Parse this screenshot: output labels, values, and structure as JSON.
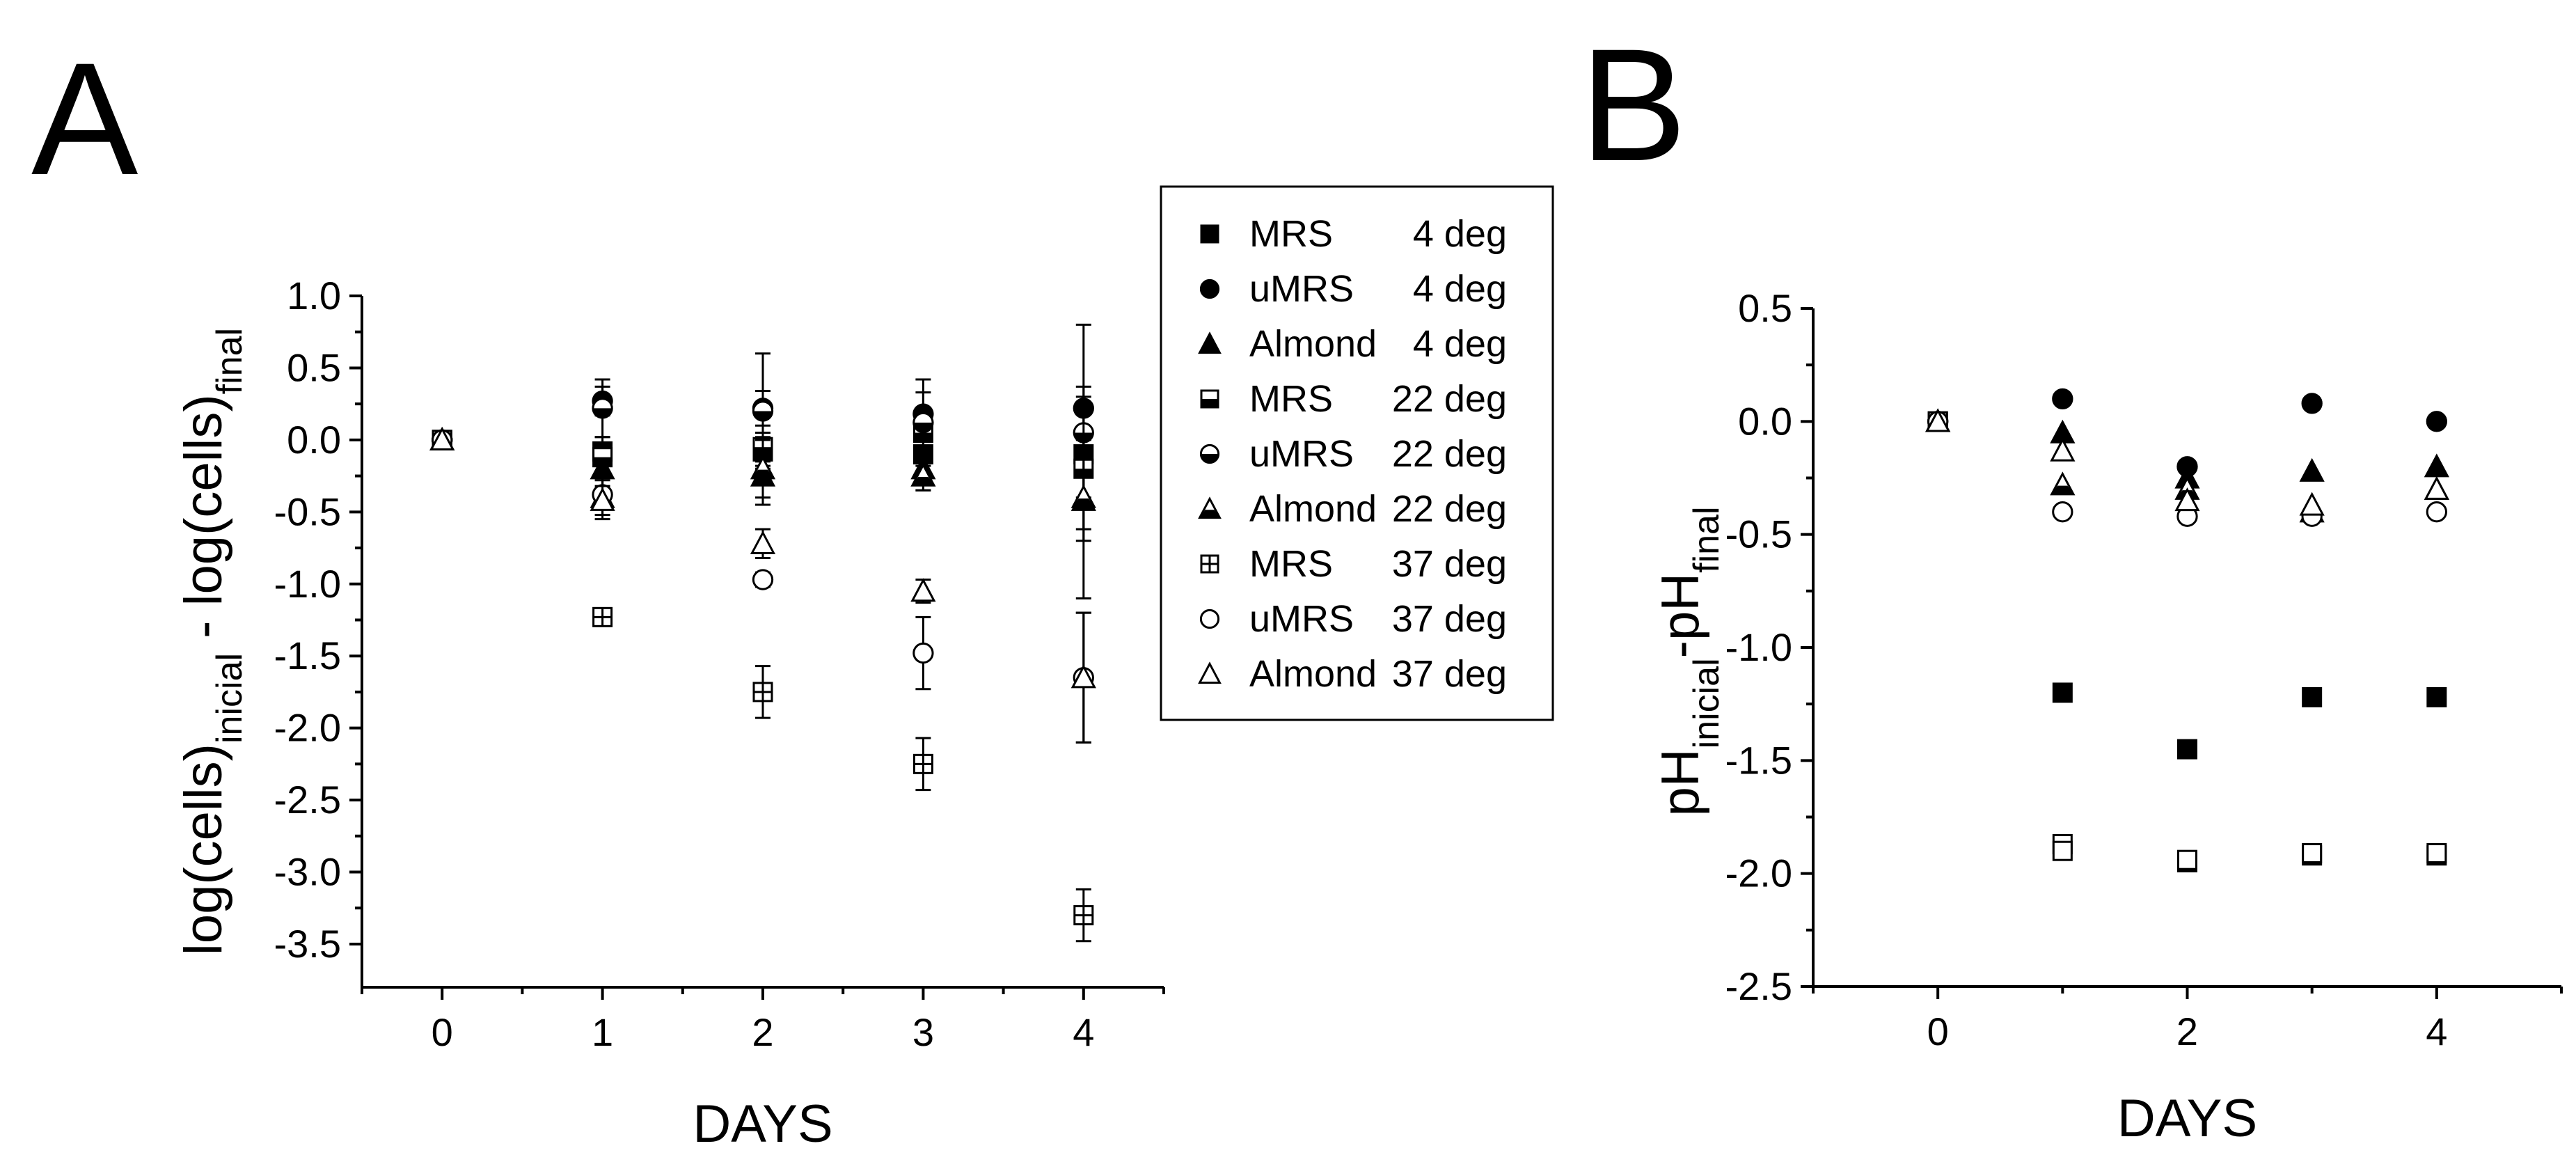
{
  "chart_data": [
    {
      "panel": "A",
      "type": "scatter",
      "title": "",
      "xlabel": "DAYS",
      "ylabel": {
        "main": "log(cells)",
        "sub1": "inicial",
        "middle": " - log(cells)",
        "sub2": "final"
      },
      "xlim": [
        -0.5,
        4.5
      ],
      "ylim": [
        -3.8,
        1.0
      ],
      "xticks": [
        0,
        1,
        2,
        3,
        4
      ],
      "yticks": [
        1.0,
        0.5,
        0.0,
        -0.5,
        -1.0,
        -1.5,
        -2.0,
        -2.5,
        -3.0,
        -3.5
      ],
      "legend_position": "right",
      "series": [
        {
          "name": "MRS    4 deg",
          "label": "MRS",
          "temp": "4 deg",
          "marker": "square",
          "fill": "solid",
          "x": [
            0,
            1,
            2,
            3,
            4
          ],
          "y": [
            0.0,
            -0.08,
            -0.08,
            -0.1,
            -0.1
          ],
          "err": [
            0,
            0.1,
            0.1,
            0.12,
            0.15
          ]
        },
        {
          "name": "uMRS   4 deg",
          "label": "uMRS",
          "temp": "4 deg",
          "marker": "circle",
          "fill": "solid",
          "x": [
            0,
            1,
            2,
            3,
            4
          ],
          "y": [
            0.0,
            0.27,
            0.22,
            0.18,
            0.22
          ],
          "err": [
            0,
            0.1,
            0.12,
            0.15,
            0.15
          ]
        },
        {
          "name": "Almond 4 deg",
          "label": "Almond",
          "temp": "4 deg",
          "marker": "triangle",
          "fill": "solid",
          "x": [
            0,
            1,
            2,
            3,
            4
          ],
          "y": [
            0.0,
            -0.2,
            -0.25,
            -0.2,
            -0.42
          ],
          "err": [
            0,
            0.15,
            0.2,
            0.15,
            0.2
          ]
        },
        {
          "name": "MRS    22 deg",
          "label": "MRS",
          "temp": "22 deg",
          "marker": "square",
          "fill": "half",
          "x": [
            0,
            1,
            2,
            3,
            4
          ],
          "y": [
            0.0,
            -0.12,
            -0.05,
            0.05,
            -0.2
          ],
          "err": [
            0,
            0.1,
            0.1,
            0.15,
            0.2
          ]
        },
        {
          "name": "uMRS   22 deg",
          "label": "uMRS",
          "temp": "22 deg",
          "marker": "circle",
          "fill": "half",
          "x": [
            0,
            1,
            2,
            3,
            4
          ],
          "y": [
            0.0,
            0.22,
            0.2,
            0.12,
            0.05
          ],
          "err": [
            0,
            0.2,
            0.4,
            0.3,
            0.75
          ]
        },
        {
          "name": "Almond 22 deg",
          "label": "Almond",
          "temp": "22 deg",
          "marker": "triangle",
          "fill": "half",
          "x": [
            0,
            1,
            2,
            3,
            4
          ],
          "y": [
            0.0,
            -0.4,
            -0.2,
            -0.25,
            -0.4
          ],
          "err": [
            0,
            0.15,
            0.2,
            0.1,
            0.7
          ]
        },
        {
          "name": "MRS    37 deg",
          "label": "MRS",
          "temp": "37 deg",
          "marker": "square",
          "fill": "cross",
          "x": [
            0,
            1,
            2,
            3,
            4
          ],
          "y": [
            0.0,
            -1.23,
            -1.75,
            -2.25,
            -3.3
          ],
          "err": [
            0,
            0.05,
            0.18,
            0.18,
            0.18
          ]
        },
        {
          "name": "uMRS   37 deg",
          "label": "uMRS",
          "temp": "37 deg",
          "marker": "circle",
          "fill": "open",
          "x": [
            0,
            1,
            2,
            3,
            4
          ],
          "y": [
            0.0,
            -0.38,
            -0.97,
            -1.48,
            -1.65
          ],
          "err": [
            0,
            0.1,
            0.05,
            0.25,
            0.45
          ]
        },
        {
          "name": "Almond 37 deg",
          "label": "Almond",
          "temp": "37 deg",
          "marker": "triangle",
          "fill": "open",
          "x": [
            0,
            1,
            2,
            3,
            4
          ],
          "y": [
            0.0,
            -0.42,
            -0.72,
            -1.05,
            -1.65
          ],
          "err": [
            0,
            0.1,
            0.1,
            0.08,
            0.45
          ]
        }
      ]
    },
    {
      "panel": "B",
      "type": "scatter",
      "title": "",
      "xlabel": "DAYS",
      "ylabel": {
        "main": "pH",
        "sub1": "inicial",
        "middle": "-pH",
        "sub2": "final"
      },
      "xlim": [
        -1.0,
        5.0
      ],
      "ylim": [
        -2.5,
        0.5
      ],
      "xticks": [
        0,
        2,
        4
      ],
      "xminor": [
        1,
        3
      ],
      "yticks": [
        0.5,
        0.0,
        -0.5,
        -1.0,
        -1.5,
        -2.0,
        -2.5
      ],
      "series": [
        {
          "name": "MRS 4 deg",
          "marker": "square",
          "fill": "solid",
          "x": [
            0,
            1,
            2,
            3,
            4
          ],
          "y": [
            0.0,
            -1.2,
            -1.45,
            -1.22,
            -1.22
          ]
        },
        {
          "name": "uMRS 4 deg",
          "marker": "circle",
          "fill": "solid",
          "x": [
            0,
            1,
            2,
            3,
            4
          ],
          "y": [
            0.0,
            0.1,
            -0.2,
            0.08,
            0.0
          ]
        },
        {
          "name": "Almond 4 deg",
          "marker": "triangle",
          "fill": "solid",
          "x": [
            0,
            1,
            2,
            3,
            4
          ],
          "y": [
            0.0,
            -0.05,
            -0.25,
            -0.22,
            -0.2
          ]
        },
        {
          "name": "MRS 22 deg",
          "marker": "square",
          "fill": "half",
          "x": [
            0,
            1,
            2,
            3,
            4
          ],
          "y": [
            0.0,
            -1.87,
            -1.95,
            -1.92,
            -1.92
          ]
        },
        {
          "name": "Almond 22 deg",
          "marker": "triangle",
          "fill": "half",
          "x": [
            0,
            1,
            2,
            3,
            4
          ],
          "y": [
            0.0,
            -0.28,
            -0.3,
            -0.4,
            -0.3
          ]
        },
        {
          "name": "MRS 37 deg",
          "marker": "square",
          "fill": "open",
          "x": [
            0,
            1,
            2,
            3,
            4
          ],
          "y": [
            0.0,
            -1.9,
            -1.94,
            -1.91,
            -1.91
          ]
        },
        {
          "name": "uMRS 37 deg",
          "marker": "circle",
          "fill": "open",
          "x": [
            0,
            1,
            2,
            3,
            4
          ],
          "y": [
            0.0,
            -0.4,
            -0.42,
            -0.42,
            -0.4
          ]
        },
        {
          "name": "Almond 37 deg",
          "marker": "triangle",
          "fill": "open",
          "x": [
            0,
            1,
            2,
            3,
            4
          ],
          "y": [
            0.0,
            -0.13,
            -0.35,
            -0.37,
            -0.3
          ]
        }
      ]
    }
  ],
  "panel_labels": {
    "a": "A",
    "b": "B"
  }
}
